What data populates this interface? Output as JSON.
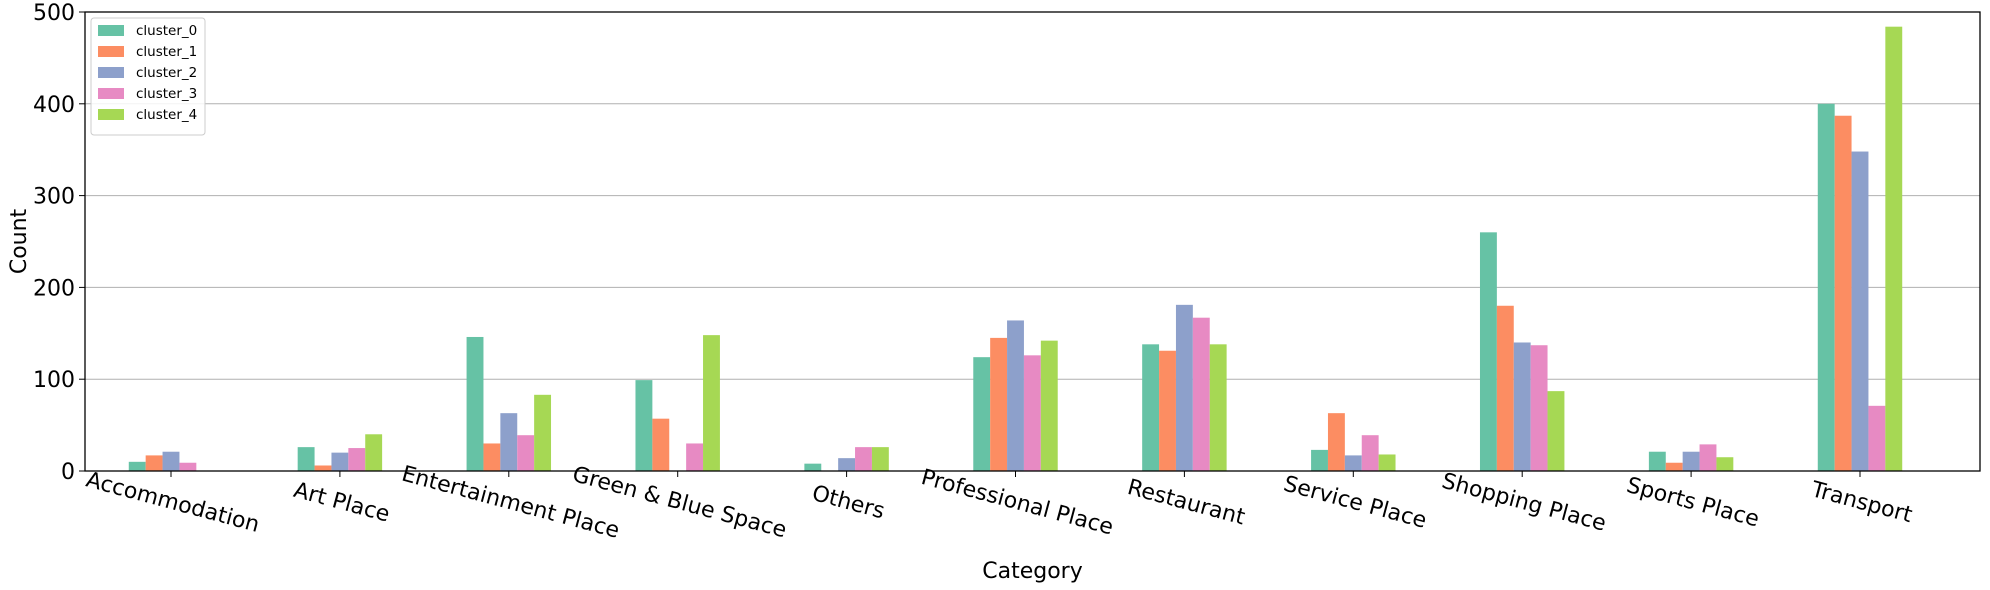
{
  "chart_data": {
    "type": "bar",
    "title": "",
    "xlabel": "Category",
    "ylabel": "Count",
    "ylim": [
      0,
      500
    ],
    "yticks": [
      "0",
      "100",
      "200",
      "300",
      "400",
      "500"
    ],
    "grid": "horizontal",
    "legend_position": "top-left",
    "categories": [
      "Accommodation",
      "Art Place",
      "Entertainment Place",
      "Green & Blue Space",
      "Others",
      "Professional Place",
      "Restaurant",
      "Service Place",
      "Shopping Place",
      "Sports Place",
      "Transport"
    ],
    "series": [
      {
        "name": "cluster_0",
        "color": "#66c2a5",
        "values": [
          10,
          26,
          146,
          99,
          8,
          124,
          138,
          23,
          260,
          21,
          400
        ]
      },
      {
        "name": "cluster_1",
        "color": "#fc8d62",
        "values": [
          17,
          6,
          30,
          57,
          0,
          145,
          131,
          63,
          180,
          9,
          387
        ]
      },
      {
        "name": "cluster_2",
        "color": "#8da0cb",
        "values": [
          21,
          20,
          63,
          0,
          14,
          164,
          181,
          17,
          140,
          21,
          348
        ]
      },
      {
        "name": "cluster_3",
        "color": "#e78ac3",
        "values": [
          9,
          25,
          39,
          30,
          26,
          126,
          167,
          39,
          137,
          29,
          71
        ]
      },
      {
        "name": "cluster_4",
        "color": "#a6d854",
        "values": [
          0,
          40,
          83,
          148,
          26,
          142,
          138,
          18,
          87,
          15,
          484
        ]
      }
    ]
  }
}
